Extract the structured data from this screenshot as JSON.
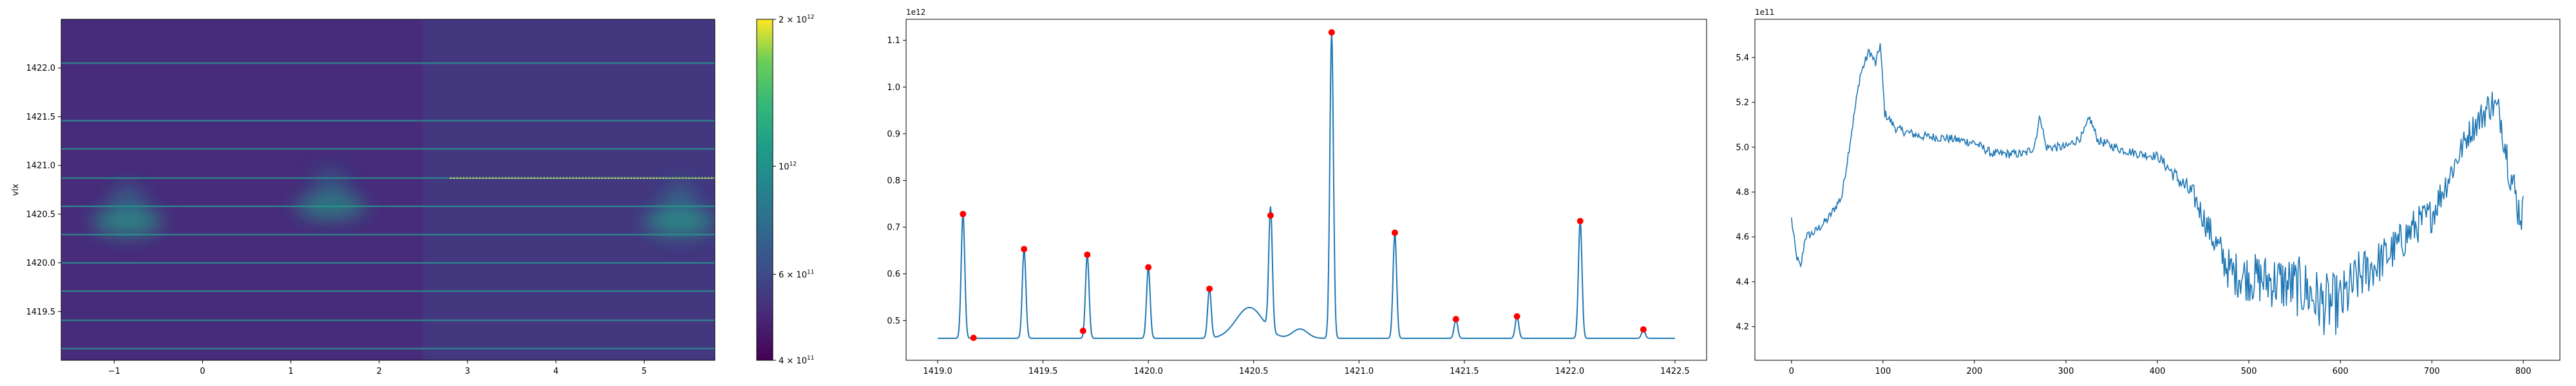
{
  "chart_data": [
    {
      "type": "heatmap",
      "xlabel": "",
      "ylabel": "vlx",
      "xlim": [
        -1.6,
        5.8
      ],
      "ylim": [
        1419.0,
        1422.5
      ],
      "x_ticks": [
        -1,
        0,
        1,
        2,
        3,
        4,
        5
      ],
      "y_ticks": [
        1419.5,
        1420.0,
        1420.5,
        1421.0,
        1421.5,
        1422.0
      ],
      "x_tick_labels": [
        "−1",
        "0",
        "1",
        "2",
        "3",
        "4",
        "5"
      ],
      "y_tick_labels": [
        "1419.5",
        "1420.0",
        "1420.5",
        "1421.0",
        "1421.5",
        "1422.0"
      ],
      "colormap": "viridis",
      "color_scale": "log",
      "colorbar_range": [
        400000000000.0,
        2000000000000.0
      ],
      "colorbar_ticks": [
        {
          "value": 2000000000000.0,
          "base": "2 × 10",
          "exp": "12"
        },
        {
          "value": 1000000000000.0,
          "base": "10",
          "exp": "12"
        },
        {
          "value": 600000000000.0,
          "base": "6 × 10",
          "exp": "11"
        },
        {
          "value": 400000000000.0,
          "base": "4 × 10",
          "exp": "11"
        }
      ],
      "horizontal_lines_y": [
        1419.12,
        1419.41,
        1419.71,
        1420.0,
        1420.29,
        1420.58,
        1420.87,
        1421.17,
        1421.46,
        1422.05
      ],
      "bright_line_y": 1420.87,
      "blobs": [
        {
          "x": -0.85,
          "y": 1420.42,
          "intensity": 0.65
        },
        {
          "x": 1.45,
          "y": 1420.58,
          "intensity": 0.55
        },
        {
          "x": 5.4,
          "y": 1420.42,
          "intensity": 0.65
        }
      ]
    },
    {
      "type": "line",
      "offset_label": "1e12",
      "xlim": [
        1418.85,
        1422.65
      ],
      "ylim": [
        0.415,
        1.145
      ],
      "x_ticks": [
        1419.0,
        1419.5,
        1420.0,
        1420.5,
        1421.0,
        1421.5,
        1422.0,
        1422.5
      ],
      "x_tick_labels": [
        "1419.0",
        "1419.5",
        "1420.0",
        "1420.5",
        "1421.0",
        "1421.5",
        "1422.0",
        "1422.5"
      ],
      "y_ticks": [
        0.5,
        0.6,
        0.7,
        0.8,
        0.9,
        1.0,
        1.1
      ],
      "y_tick_labels": [
        "0.5",
        "0.6",
        "0.7",
        "0.8",
        "0.9",
        "1.0",
        "1.1"
      ],
      "baseline": 0.462,
      "series_color": "#1f77b4",
      "marker_color": "#ff0000",
      "peaks": [
        {
          "x": 1419.12,
          "y": 0.728
        },
        {
          "x": 1419.41,
          "y": 0.653
        },
        {
          "x": 1419.71,
          "y": 0.641
        },
        {
          "x": 1420.0,
          "y": 0.614
        },
        {
          "x": 1420.29,
          "y": 0.568
        },
        {
          "x": 1420.58,
          "y": 0.725
        },
        {
          "x": 1420.87,
          "y": 1.117
        },
        {
          "x": 1421.17,
          "y": 0.688
        },
        {
          "x": 1421.46,
          "y": 0.503
        },
        {
          "x": 1421.75,
          "y": 0.509
        },
        {
          "x": 1422.05,
          "y": 0.713
        },
        {
          "x": 1422.35,
          "y": 0.481
        }
      ],
      "markers": [
        {
          "x": 1419.12,
          "y": 0.728
        },
        {
          "x": 1419.17,
          "y": 0.463
        },
        {
          "x": 1419.41,
          "y": 0.653
        },
        {
          "x": 1419.69,
          "y": 0.478
        },
        {
          "x": 1419.71,
          "y": 0.641
        },
        {
          "x": 1420.0,
          "y": 0.614
        },
        {
          "x": 1420.29,
          "y": 0.568
        },
        {
          "x": 1420.58,
          "y": 0.725
        },
        {
          "x": 1420.87,
          "y": 1.117
        },
        {
          "x": 1421.17,
          "y": 0.688
        },
        {
          "x": 1421.46,
          "y": 0.503
        },
        {
          "x": 1421.75,
          "y": 0.509
        },
        {
          "x": 1422.05,
          "y": 0.713
        },
        {
          "x": 1422.35,
          "y": 0.481
        }
      ],
      "bumps": [
        {
          "x": 1420.48,
          "y": 0.528,
          "width": 0.09
        },
        {
          "x": 1420.72,
          "y": 0.482,
          "width": 0.05
        }
      ]
    },
    {
      "type": "line",
      "offset_label": "1e11",
      "xlim": [
        -40,
        840
      ],
      "ylim": [
        4.05,
        5.57
      ],
      "x_ticks": [
        0,
        100,
        200,
        300,
        400,
        500,
        600,
        700,
        800
      ],
      "x_tick_labels": [
        "0",
        "100",
        "200",
        "300",
        "400",
        "500",
        "600",
        "700",
        "800"
      ],
      "y_ticks": [
        4.2,
        4.4,
        4.6,
        4.8,
        5.0,
        5.2,
        5.4
      ],
      "y_tick_labels": [
        "4.2",
        "4.4",
        "4.6",
        "4.8",
        "5.0",
        "5.2",
        "5.4"
      ],
      "series_color": "#1f77b4",
      "n_points": 801,
      "trend": [
        [
          0,
          4.68
        ],
        [
          5,
          4.52
        ],
        [
          10,
          4.46
        ],
        [
          15,
          4.6
        ],
        [
          25,
          4.62
        ],
        [
          40,
          4.68
        ],
        [
          55,
          4.78
        ],
        [
          65,
          5.05
        ],
        [
          75,
          5.32
        ],
        [
          85,
          5.43
        ],
        [
          92,
          5.37
        ],
        [
          97,
          5.46
        ],
        [
          102,
          5.15
        ],
        [
          115,
          5.08
        ],
        [
          140,
          5.05
        ],
        [
          170,
          5.04
        ],
        [
          200,
          5.02
        ],
        [
          220,
          4.97
        ],
        [
          255,
          4.97
        ],
        [
          265,
          5.0
        ],
        [
          272,
          5.14
        ],
        [
          278,
          5.0
        ],
        [
          300,
          5.0
        ],
        [
          318,
          5.05
        ],
        [
          326,
          5.13
        ],
        [
          335,
          5.03
        ],
        [
          360,
          4.99
        ],
        [
          380,
          4.97
        ],
        [
          400,
          4.96
        ],
        [
          420,
          4.87
        ],
        [
          440,
          4.78
        ],
        [
          460,
          4.6
        ],
        [
          480,
          4.44
        ],
        [
          500,
          4.42
        ],
        [
          530,
          4.4
        ],
        [
          560,
          4.37
        ],
        [
          580,
          4.3
        ],
        [
          600,
          4.3
        ],
        [
          620,
          4.42
        ],
        [
          640,
          4.48
        ],
        [
          660,
          4.55
        ],
        [
          680,
          4.64
        ],
        [
          700,
          4.7
        ],
        [
          720,
          4.88
        ],
        [
          740,
          5.06
        ],
        [
          755,
          5.14
        ],
        [
          765,
          5.2
        ],
        [
          775,
          5.14
        ],
        [
          785,
          4.9
        ],
        [
          795,
          4.72
        ],
        [
          800,
          4.7
        ]
      ],
      "noise": [
        [
          0,
          0.02
        ],
        [
          400,
          0.02
        ],
        [
          450,
          0.06
        ],
        [
          480,
          0.1
        ],
        [
          520,
          0.12
        ],
        [
          560,
          0.14
        ],
        [
          600,
          0.14
        ],
        [
          640,
          0.1
        ],
        [
          700,
          0.08
        ],
        [
          740,
          0.06
        ],
        [
          800,
          0.1
        ]
      ]
    }
  ]
}
